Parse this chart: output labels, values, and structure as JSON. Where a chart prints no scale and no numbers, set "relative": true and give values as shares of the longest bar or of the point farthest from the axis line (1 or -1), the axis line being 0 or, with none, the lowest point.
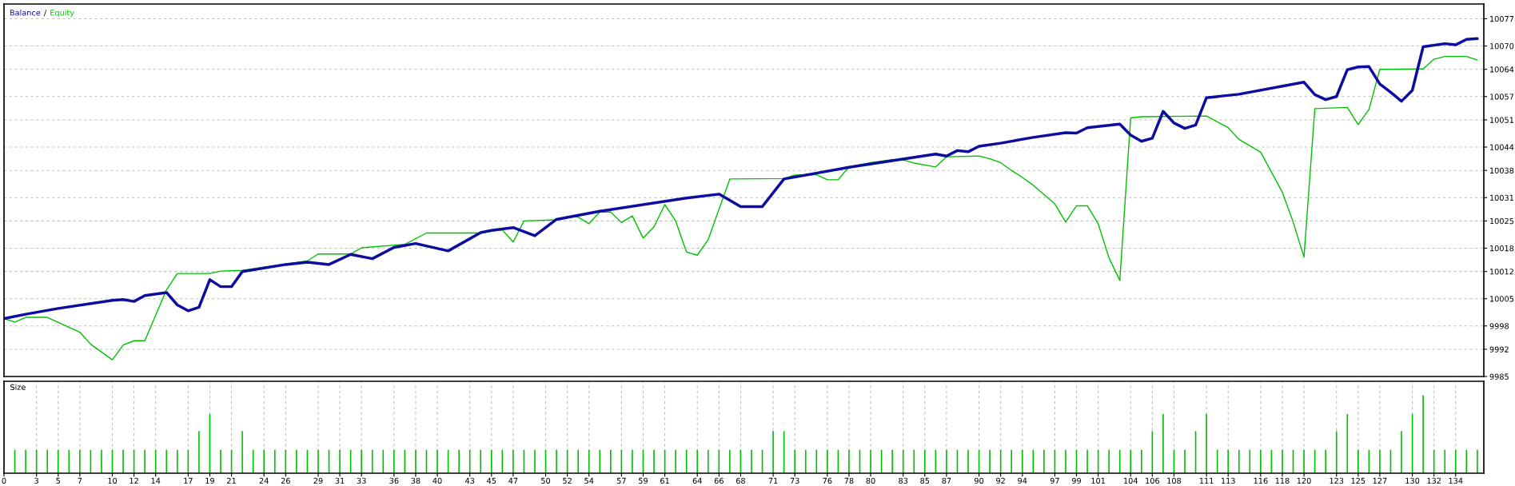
{
  "chart_data": [
    {
      "type": "line",
      "legend": "top left",
      "grid": true,
      "tick_labels": "y",
      "annotations": [
        "/"
      ],
      "xlim": [
        0,
        136.6
      ],
      "ylim": [
        9985,
        10080.8
      ],
      "yticks": [
        9985,
        9992,
        9998,
        10005,
        10012,
        10018,
        10025,
        10031,
        10038,
        10044,
        10051,
        10057,
        10064,
        10070,
        10077
      ],
      "series": [
        {
          "name": "Equity",
          "color": "#00c000",
          "x": [
            0,
            1,
            2,
            4,
            7,
            8,
            10,
            11,
            12,
            13,
            15,
            16,
            19,
            20,
            22,
            28,
            29,
            32,
            33,
            37,
            39,
            44,
            46,
            47,
            48,
            51,
            52,
            53,
            54,
            55,
            56,
            57,
            58,
            59,
            60,
            61,
            62,
            63,
            64,
            65,
            67,
            72,
            73,
            75,
            76,
            77,
            78,
            80,
            82,
            83,
            84,
            86,
            87,
            90,
            91,
            92,
            93,
            94,
            95,
            97,
            98,
            99,
            100,
            101,
            102,
            103,
            104,
            105,
            111,
            113,
            114,
            116,
            118,
            119,
            120,
            121,
            124,
            125,
            126,
            127,
            131,
            132,
            133,
            135,
            136
          ],
          "values": [
            9999.9,
            9999.0,
            10000.2,
            10000.2,
            9996.4,
            9993.3,
            9989.3,
            9993.1,
            9994.2,
            9994.2,
            10007.3,
            10011.5,
            10011.5,
            10012.1,
            10012.3,
            10014.7,
            10016.5,
            10016.5,
            10018.1,
            10019.0,
            10021.9,
            10021.9,
            10022.7,
            10019.6,
            10025.0,
            10025.3,
            10026.1,
            10026.0,
            10024.3,
            10027.3,
            10027.3,
            10024.6,
            10026.3,
            10020.6,
            10023.5,
            10029.2,
            10025.0,
            10017.0,
            10016.2,
            10020.2,
            10035.8,
            10035.9,
            10036.8,
            10036.9,
            10035.6,
            10035.6,
            10038.9,
            10040.0,
            10040.8,
            10040.7,
            10039.9,
            10038.9,
            10041.5,
            10041.7,
            10041.0,
            10040.0,
            10038.0,
            10036.2,
            10034.2,
            10029.4,
            10024.7,
            10028.9,
            10028.9,
            10024.3,
            10015.5,
            10009.7,
            10051.5,
            10051.8,
            10052.0,
            10049.0,
            10046.0,
            10042.7,
            10032.4,
            10024.7,
            10015.7,
            10053.9,
            10054.2,
            10049.8,
            10053.7,
            10064.0,
            10064.1,
            10066.6,
            10067.3,
            10067.3,
            10066.4
          ]
        },
        {
          "name": "Balance",
          "color": "#0c0ca0",
          "x": [
            0,
            2,
            5,
            10,
            11,
            12,
            13,
            15,
            16,
            17,
            18,
            19,
            20,
            21,
            22,
            26,
            28,
            30,
            32,
            34,
            36,
            38,
            41,
            44,
            45,
            47,
            49,
            51,
            55,
            63,
            66,
            68,
            70,
            72,
            75,
            78,
            86,
            87,
            88,
            89,
            90,
            92,
            95,
            98,
            99,
            100,
            103,
            104,
            105,
            106,
            107,
            108,
            109,
            110,
            111,
            114,
            120,
            121,
            122,
            123,
            124,
            125,
            126,
            127,
            128,
            129,
            130,
            131,
            133,
            134,
            135,
            136
          ],
          "values": [
            9999.9,
            10001.0,
            10002.5,
            10004.6,
            10004.8,
            10004.3,
            10005.8,
            10006.6,
            10003.4,
            10001.9,
            10002.8,
            10009.9,
            10008.1,
            10008.1,
            10012.0,
            10013.8,
            10014.4,
            10013.8,
            10016.4,
            10015.3,
            10018.2,
            10019.2,
            10017.3,
            10022.0,
            10022.6,
            10023.3,
            10021.2,
            10025.4,
            10027.5,
            10030.9,
            10031.9,
            10028.7,
            10028.7,
            10035.8,
            10037.3,
            10038.8,
            10042.2,
            10041.7,
            10043.1,
            10042.8,
            10044.2,
            10045.0,
            10046.5,
            10047.7,
            10047.6,
            10049.0,
            10049.9,
            10047.1,
            10045.5,
            10046.3,
            10053.2,
            10050.2,
            10048.8,
            10049.7,
            10056.7,
            10057.6,
            10060.7,
            10057.5,
            10056.2,
            10057.0,
            10063.9,
            10064.6,
            10064.7,
            10060.2,
            10058.1,
            10055.8,
            10058.6,
            10069.8,
            10070.6,
            10070.3,
            10071.7,
            10071.9
          ]
        }
      ]
    },
    {
      "type": "bar",
      "title": "Size",
      "relative": true,
      "grid": "x",
      "tick_labels": "x",
      "color": "#00c000",
      "xlim": [
        0,
        136.6
      ],
      "xticks": [
        0,
        3,
        5,
        7,
        10,
        12,
        14,
        17,
        19,
        21,
        24,
        26,
        29,
        31,
        33,
        36,
        38,
        40,
        43,
        45,
        47,
        50,
        52,
        54,
        57,
        59,
        61,
        64,
        66,
        68,
        71,
        73,
        76,
        78,
        80,
        83,
        85,
        87,
        90,
        92,
        94,
        97,
        99,
        101,
        104,
        106,
        108,
        111,
        113,
        116,
        118,
        120,
        123,
        125,
        127,
        130,
        132,
        134
      ],
      "x": [
        1,
        2,
        3,
        4,
        5,
        6,
        7,
        8,
        9,
        10,
        11,
        12,
        13,
        14,
        15,
        16,
        17,
        18,
        19,
        20,
        21,
        22,
        23,
        24,
        25,
        26,
        27,
        28,
        29,
        30,
        31,
        32,
        33,
        34,
        35,
        36,
        37,
        38,
        39,
        40,
        41,
        42,
        43,
        44,
        45,
        46,
        47,
        48,
        49,
        50,
        51,
        52,
        53,
        54,
        55,
        56,
        57,
        58,
        59,
        60,
        61,
        62,
        63,
        64,
        65,
        66,
        67,
        68,
        69,
        70,
        71,
        72,
        73,
        74,
        75,
        76,
        77,
        78,
        79,
        80,
        81,
        82,
        83,
        84,
        85,
        86,
        87,
        88,
        89,
        90,
        91,
        92,
        93,
        94,
        95,
        96,
        97,
        98,
        99,
        100,
        101,
        102,
        103,
        104,
        105,
        106,
        107,
        108,
        109,
        110,
        111,
        112,
        113,
        114,
        115,
        116,
        117,
        118,
        119,
        120,
        121,
        122,
        123,
        124,
        125,
        126,
        127,
        128,
        129,
        130,
        131,
        132,
        133,
        134,
        135,
        136
      ],
      "values": [
        0.3,
        0.3,
        0.3,
        0.3,
        0.3,
        0.3,
        0.3,
        0.3,
        0.3,
        0.3,
        0.3,
        0.3,
        0.3,
        0.3,
        0.3,
        0.3,
        0.3,
        0.54,
        0.76,
        0.3,
        0.3,
        0.54,
        0.3,
        0.3,
        0.3,
        0.3,
        0.3,
        0.3,
        0.3,
        0.3,
        0.3,
        0.3,
        0.3,
        0.3,
        0.3,
        0.3,
        0.3,
        0.3,
        0.3,
        0.3,
        0.3,
        0.3,
        0.3,
        0.3,
        0.3,
        0.3,
        0.3,
        0.3,
        0.3,
        0.3,
        0.3,
        0.3,
        0.3,
        0.3,
        0.3,
        0.3,
        0.3,
        0.3,
        0.3,
        0.3,
        0.3,
        0.3,
        0.3,
        0.3,
        0.3,
        0.3,
        0.3,
        0.3,
        0.3,
        0.3,
        0.54,
        0.54,
        0.3,
        0.3,
        0.3,
        0.3,
        0.3,
        0.3,
        0.3,
        0.3,
        0.3,
        0.3,
        0.3,
        0.3,
        0.3,
        0.3,
        0.3,
        0.3,
        0.3,
        0.3,
        0.3,
        0.3,
        0.3,
        0.3,
        0.3,
        0.3,
        0.3,
        0.3,
        0.3,
        0.3,
        0.3,
        0.3,
        0.3,
        0.3,
        0.3,
        0.54,
        0.76,
        0.3,
        0.3,
        0.54,
        0.76,
        0.3,
        0.3,
        0.3,
        0.3,
        0.3,
        0.3,
        0.3,
        0.3,
        0.3,
        0.3,
        0.3,
        0.54,
        0.76,
        0.3,
        0.3,
        0.3,
        0.3,
        0.54,
        0.76,
        1,
        0.3,
        0.3,
        0.3,
        0.3,
        0.3
      ]
    }
  ]
}
